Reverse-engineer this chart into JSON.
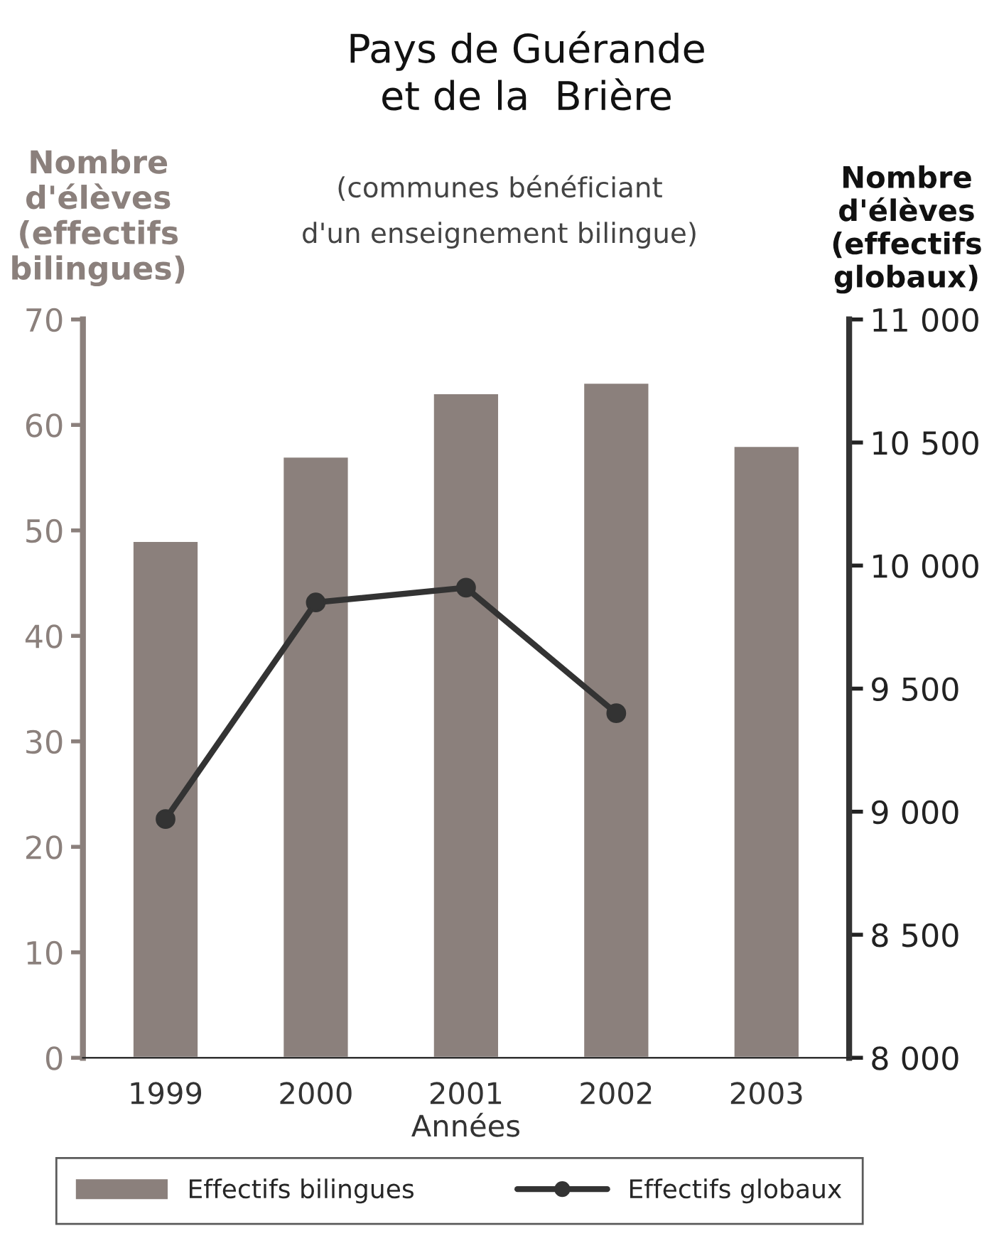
{
  "chart_data": {
    "type": "bar",
    "title": "Pays de Guérande\net de la  Brière",
    "subtitle": "(communes bénéficiant\nd'un enseignement bilingue)",
    "xlabel": "Années",
    "ylabel": "Nombre\nd'élèves\n(effectifs\nbilingues)",
    "y2label": "Nombre\nd'élèves\n(effectifs\nglobaux)",
    "categories": [
      "1999",
      "2000",
      "2001",
      "2002",
      "2003"
    ],
    "series": [
      {
        "name": "Effectifs bilingues",
        "color": "#8b807c",
        "values": [
          49,
          57,
          63,
          64,
          58
        ]
      },
      {
        "name": "Effectifs globaux",
        "type": "line",
        "axis": "y2",
        "color": "#333333",
        "marker": "circle",
        "line_style": "solid",
        "values": [
          8970,
          9850,
          9910,
          9400,
          null
        ]
      }
    ],
    "ylim": [
      0,
      70
    ],
    "yticks": [
      0,
      10,
      20,
      30,
      40,
      50,
      60,
      70
    ],
    "y2lim": [
      8000,
      11000
    ],
    "y2ticks": [
      {
        "value": 8000,
        "label": "8 000"
      },
      {
        "value": 8500,
        "label": "8 500"
      },
      {
        "value": 9000,
        "label": "9 000"
      },
      {
        "value": 9500,
        "label": "9 500"
      },
      {
        "value": 10000,
        "label": "10 000"
      },
      {
        "value": 10500,
        "label": "10 500"
      },
      {
        "value": 11000,
        "label": "11 000"
      }
    ],
    "grid": false,
    "legend": "bottom"
  }
}
